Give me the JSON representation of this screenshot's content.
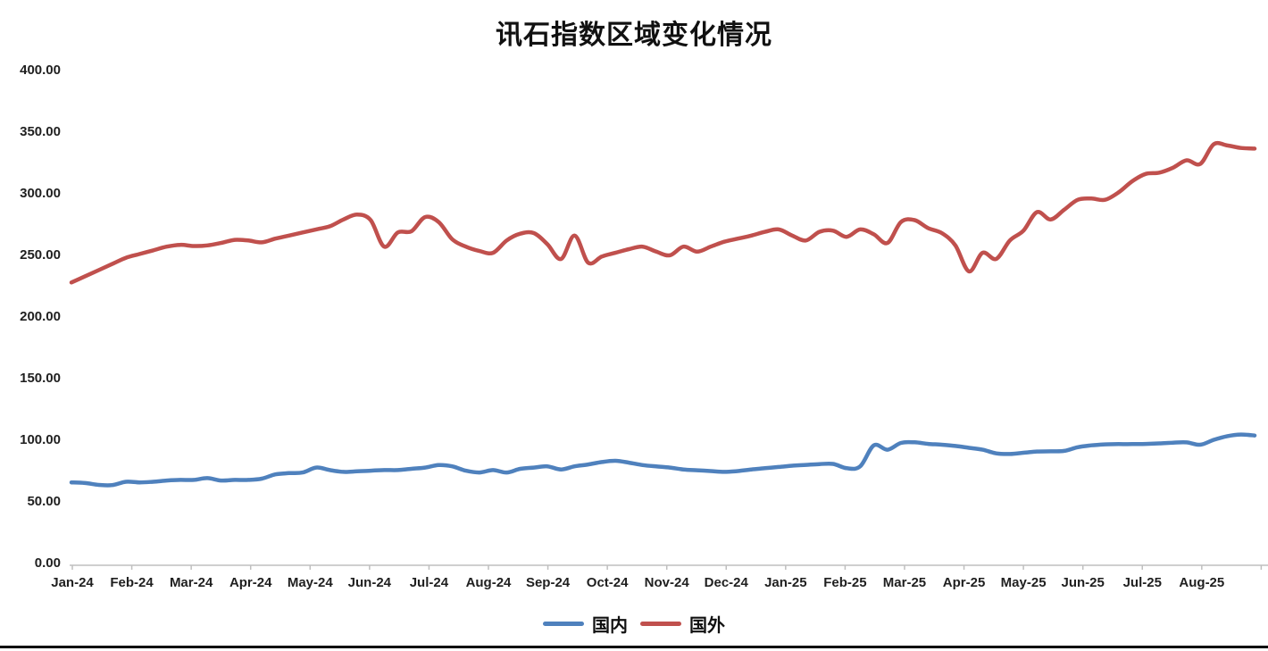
{
  "chart_data": {
    "type": "line",
    "title": "讯石指数区域变化情况",
    "x_tick_labels": [
      "Jan-24",
      "Feb-24",
      "Mar-24",
      "Apr-24",
      "May-24",
      "Jun-24",
      "Jul-24",
      "Aug-24",
      "Sep-24",
      "Oct-24",
      "Nov-24",
      "Dec-24",
      "Jan-25",
      "Feb-25",
      "Mar-25",
      "Apr-25",
      "May-25",
      "Jun-25",
      "Jul-25",
      "Aug-25"
    ],
    "y_tick_labels": [
      "400.00",
      "350.00",
      "300.00",
      "250.00",
      "200.00",
      "150.00",
      "100.00",
      "50.00",
      "0.00"
    ],
    "ylim": [
      0,
      400
    ],
    "y_tick_step": 50,
    "grid": "off",
    "legend_position": "bottom-center",
    "axis_color": "#BFBFBF",
    "text_color": "#1F1F1F",
    "series": [
      {
        "name": "国内",
        "color": "#4F81BD",
        "values": [
          66,
          65.5,
          64,
          63.8,
          66.5,
          66,
          66.5,
          67.5,
          68,
          68,
          69.5,
          67.5,
          68,
          68,
          69,
          72.5,
          73.5,
          74,
          78,
          76,
          74.5,
          75,
          75.5,
          76,
          76,
          77,
          78,
          80,
          79,
          75.5,
          74,
          76,
          74,
          77,
          78,
          79,
          76.5,
          79,
          80.5,
          82.5,
          83.5,
          82,
          80,
          79,
          78,
          76.5,
          75.8,
          75.2,
          74.5,
          75.2,
          76.5,
          77.5,
          78.5,
          79.5,
          80.2,
          80.8,
          81,
          77.5,
          79,
          96,
          92.5,
          98,
          98.5,
          97.2,
          96.5,
          95.5,
          94,
          92.5,
          89.5,
          89,
          90,
          91,
          91.2,
          91.5,
          94.5,
          96,
          96.8,
          97,
          97,
          97.2,
          97.6,
          98.2,
          98.4,
          96.5,
          100.5,
          103.5,
          104.8,
          104
        ]
      },
      {
        "name": "国外",
        "color": "#C0504D",
        "values": [
          228,
          233,
          238,
          243,
          248,
          251,
          254,
          257,
          258.5,
          257.5,
          258,
          260,
          262.5,
          262,
          260.5,
          263.5,
          266,
          268.5,
          271,
          273.5,
          279,
          283,
          278.5,
          257,
          268.5,
          269.5,
          281,
          277,
          263,
          257,
          253.5,
          252,
          262,
          267.5,
          268,
          259,
          247,
          266,
          244,
          249,
          252,
          255,
          257,
          253,
          250,
          257,
          253,
          257,
          261,
          263.5,
          266,
          269,
          271,
          266,
          262,
          269,
          270,
          265,
          271,
          267,
          260,
          277,
          278.5,
          272,
          268,
          258,
          237,
          252,
          247,
          262,
          270,
          285,
          279,
          287,
          295,
          296,
          295,
          301,
          310,
          316,
          317,
          321,
          327,
          324,
          340,
          339,
          337,
          336.5
        ]
      }
    ]
  }
}
